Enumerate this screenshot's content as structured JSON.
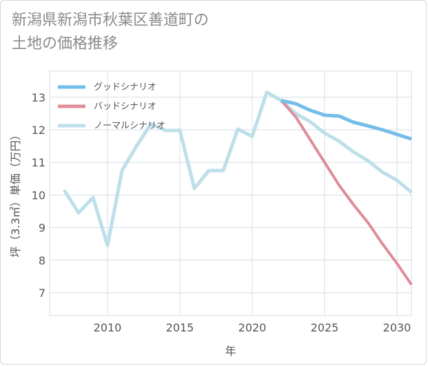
{
  "title": "新潟県新潟市秋葉区善道町の\n土地の価格推移",
  "chart_data": {
    "type": "line",
    "title": "新潟県新潟市秋葉区善道町の土地の価格推移",
    "xlabel": "年",
    "ylabel": "坪（3.3㎡）単価（万円）",
    "xlim": [
      2006,
      2031
    ],
    "ylim": [
      6.3,
      13.8
    ],
    "xticks": [
      2010,
      2015,
      2020,
      2025,
      2030
    ],
    "yticks": [
      7,
      8,
      9,
      10,
      11,
      12,
      13
    ],
    "grid": true,
    "legend_position": "top-left",
    "series": [
      {
        "name": "グッドシナリオ",
        "color": "#74bde9",
        "x": [
          2022,
          2023,
          2024,
          2025,
          2026,
          2027,
          2028,
          2029,
          2030,
          2031
        ],
        "values": [
          12.9,
          12.8,
          12.6,
          12.45,
          12.42,
          12.23,
          12.12,
          12.0,
          11.86,
          11.72
        ]
      },
      {
        "name": "バッドシナリオ",
        "color": "#df8d98",
        "x": [
          2022,
          2023,
          2024,
          2025,
          2026,
          2027,
          2028,
          2029,
          2030,
          2031
        ],
        "values": [
          12.9,
          12.4,
          11.7,
          11.0,
          10.3,
          9.7,
          9.15,
          8.5,
          7.9,
          7.25
        ]
      },
      {
        "name": "ノーマルシナリオ",
        "color": "#bcdfea",
        "x": [
          2007,
          2008,
          2009,
          2010,
          2011,
          2012,
          2013,
          2014,
          2015,
          2016,
          2017,
          2018,
          2019,
          2020,
          2021,
          2022,
          2023,
          2024,
          2025,
          2026,
          2027,
          2028,
          2029,
          2030,
          2031
        ],
        "values": [
          10.15,
          9.45,
          9.92,
          8.45,
          10.75,
          11.5,
          12.18,
          11.98,
          11.98,
          10.2,
          10.75,
          10.75,
          12.02,
          11.8,
          13.15,
          12.9,
          12.5,
          12.25,
          11.9,
          11.65,
          11.32,
          11.05,
          10.7,
          10.45,
          10.08
        ]
      }
    ]
  }
}
